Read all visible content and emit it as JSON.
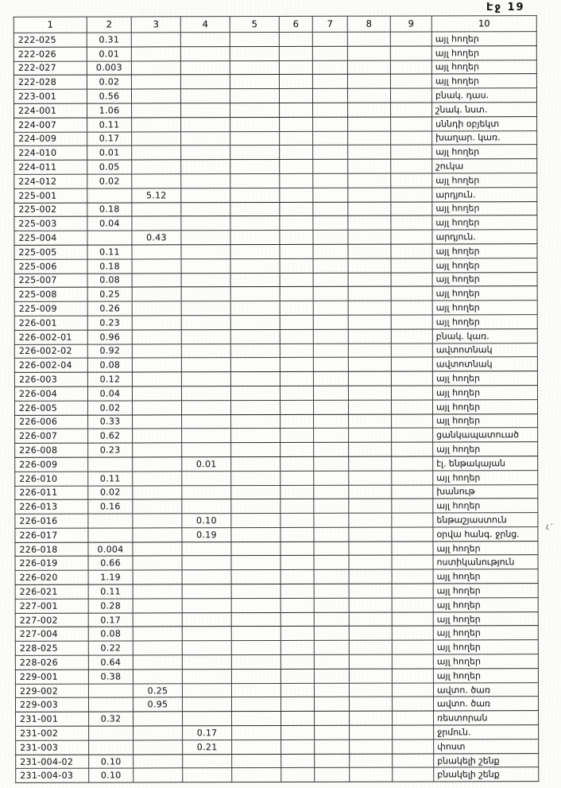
{
  "page": {
    "label": "Էջ 19"
  },
  "margin_mark": "ւ՛",
  "table": {
    "columns": [
      "1",
      "2",
      "3",
      "4",
      "5",
      "6",
      "7",
      "8",
      "9",
      "10"
    ],
    "rows": [
      {
        "code": "222-025",
        "c2": "0.31",
        "c3": "",
        "c4": "",
        "use": "այլ հողեր"
      },
      {
        "code": "222-026",
        "c2": "0.01",
        "c3": "",
        "c4": "",
        "use": "այլ հողեր"
      },
      {
        "code": "222-027",
        "c2": "0.003",
        "c3": "",
        "c4": "",
        "use": "այլ հողեր"
      },
      {
        "code": "222-028",
        "c2": "0.02",
        "c3": "",
        "c4": "",
        "use": "այլ հողեր"
      },
      {
        "code": "223-001",
        "c2": "0.56",
        "c3": "",
        "c4": "",
        "use": "բնակ. դաս."
      },
      {
        "code": "224-001",
        "c2": "1.06",
        "c3": "",
        "c4": "",
        "use": "շնակ. նստ."
      },
      {
        "code": "224-007",
        "c2": "0.11",
        "c3": "",
        "c4": "",
        "use": "սննդի օբյեկտ"
      },
      {
        "code": "224-009",
        "c2": "0.17",
        "c3": "",
        "c4": "",
        "use": "խաղար. կառ."
      },
      {
        "code": "224-010",
        "c2": "0.01",
        "c3": "",
        "c4": "",
        "use": "այլ հողեր"
      },
      {
        "code": "224-011",
        "c2": "0.05",
        "c3": "",
        "c4": "",
        "use": "շուկա"
      },
      {
        "code": "224-012",
        "c2": "0.02",
        "c3": "",
        "c4": "",
        "use": "այլ հողեր"
      },
      {
        "code": "225-001",
        "c2": "",
        "c3": "5.12",
        "c4": "",
        "use": "արդյուն."
      },
      {
        "code": "225-002",
        "c2": "0.18",
        "c3": "",
        "c4": "",
        "use": "այլ հողեր"
      },
      {
        "code": "225-003",
        "c2": "0.04",
        "c3": "",
        "c4": "",
        "use": "այլ հողեր"
      },
      {
        "code": "225-004",
        "c2": "",
        "c3": "0.43",
        "c4": "",
        "use": "արդյուն."
      },
      {
        "code": "225-005",
        "c2": "0.11",
        "c3": "",
        "c4": "",
        "use": "այլ հողեր"
      },
      {
        "code": "225-006",
        "c2": "0.18",
        "c3": "",
        "c4": "",
        "use": "այլ հողեր"
      },
      {
        "code": "225-007",
        "c2": "0.08",
        "c3": "",
        "c4": "",
        "use": "այլ հողեր"
      },
      {
        "code": "225-008",
        "c2": "0.25",
        "c3": "",
        "c4": "",
        "use": "այլ հողեր"
      },
      {
        "code": "225-009",
        "c2": "0.26",
        "c3": "",
        "c4": "",
        "use": "այլ հողեր"
      },
      {
        "code": "226-001",
        "c2": "0.23",
        "c3": "",
        "c4": "",
        "use": "այլ հողեր"
      },
      {
        "code": "226-002-01",
        "c2": "0.96",
        "c3": "",
        "c4": "",
        "use": "բնակ. կառ."
      },
      {
        "code": "226-002-02",
        "c2": "0.92",
        "c3": "",
        "c4": "",
        "use": "ավտոտնակ"
      },
      {
        "code": "226-002-04",
        "c2": "0.08",
        "c3": "",
        "c4": "",
        "use": "ավտոտնակ"
      },
      {
        "code": "226-003",
        "c2": "0.12",
        "c3": "",
        "c4": "",
        "use": "այլ հողեր"
      },
      {
        "code": "226-004",
        "c2": "0.04",
        "c3": "",
        "c4": "",
        "use": "այլ հողեր"
      },
      {
        "code": "226-005",
        "c2": "0.02",
        "c3": "",
        "c4": "",
        "use": "այլ հողեր"
      },
      {
        "code": "226-006",
        "c2": "0.33",
        "c3": "",
        "c4": "",
        "use": "այլ հողեր"
      },
      {
        "code": "226-007",
        "c2": "0.62",
        "c3": "",
        "c4": "",
        "use": "ցանկապատուած"
      },
      {
        "code": "226-008",
        "c2": "0.23",
        "c3": "",
        "c4": "",
        "use": "այլ հողեր"
      },
      {
        "code": "226-009",
        "c2": "",
        "c3": "",
        "c4": "0.01",
        "use": "էլ. ենթակայան"
      },
      {
        "code": "226-010",
        "c2": "0.11",
        "c3": "",
        "c4": "",
        "use": "այլ հողեր"
      },
      {
        "code": "226-011",
        "c2": "0.02",
        "c3": "",
        "c4": "",
        "use": "խանութ"
      },
      {
        "code": "226-013",
        "c2": "0.16",
        "c3": "",
        "c4": "",
        "use": "այլ հողեր"
      },
      {
        "code": "226-016",
        "c2": "",
        "c3": "",
        "c4": "0.10",
        "use": "ենթաշյաստուն"
      },
      {
        "code": "226-017",
        "c2": "",
        "c3": "",
        "c4": "0.19",
        "use": "օրվա հանգ. ջրնց."
      },
      {
        "code": "226-018",
        "c2": "0.004",
        "c3": "",
        "c4": "",
        "use": "այլ հողեր"
      },
      {
        "code": "226-019",
        "c2": "0.66",
        "c3": "",
        "c4": "",
        "use": "ոստիկանություն"
      },
      {
        "code": "226-020",
        "c2": "1.19",
        "c3": "",
        "c4": "",
        "use": "այլ հողեր"
      },
      {
        "code": "226-021",
        "c2": "0.11",
        "c3": "",
        "c4": "",
        "use": "այլ հողեր"
      },
      {
        "code": "227-001",
        "c2": "0.28",
        "c3": "",
        "c4": "",
        "use": "այլ հողեր"
      },
      {
        "code": "227-002",
        "c2": "0.17",
        "c3": "",
        "c4": "",
        "use": "այլ հողեր"
      },
      {
        "code": "227-004",
        "c2": "0.08",
        "c3": "",
        "c4": "",
        "use": "այլ հողեր"
      },
      {
        "code": "228-025",
        "c2": "0.22",
        "c3": "",
        "c4": "",
        "use": "այլ հողեր"
      },
      {
        "code": "228-026",
        "c2": "0.64",
        "c3": "",
        "c4": "",
        "use": "այլ հողեր"
      },
      {
        "code": "229-001",
        "c2": "0.38",
        "c3": "",
        "c4": "",
        "use": "այլ հողեր"
      },
      {
        "code": "229-002",
        "c2": "",
        "c3": "0.25",
        "c4": "",
        "use": "ավտո. ծառ"
      },
      {
        "code": "229-003",
        "c2": "",
        "c3": "0.95",
        "c4": "",
        "use": "ավտո. ծառ"
      },
      {
        "code": "231-001",
        "c2": "0.32",
        "c3": "",
        "c4": "",
        "use": "ռեստորան"
      },
      {
        "code": "231-002",
        "c2": "",
        "c3": "",
        "c4": "0.17",
        "use": "ջրմուն."
      },
      {
        "code": "231-003",
        "c2": "",
        "c3": "",
        "c4": "0.21",
        "use": "փոստ"
      },
      {
        "code": "231-004-02",
        "c2": "0.10",
        "c3": "",
        "c4": "",
        "use": "բնակելի շենք"
      },
      {
        "code": "231-004-03",
        "c2": "0.10",
        "c3": "",
        "c4": "",
        "use": "բնակելի շենք"
      }
    ]
  }
}
